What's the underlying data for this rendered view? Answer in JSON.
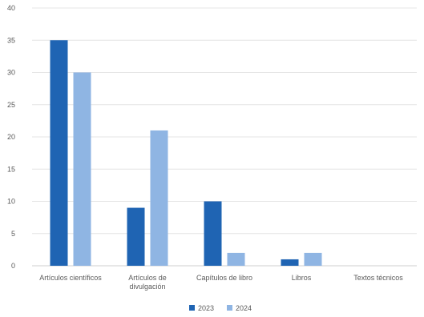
{
  "chart_data": {
    "type": "bar",
    "title": "",
    "xlabel": "",
    "ylabel": "",
    "ylim": [
      0,
      40
    ],
    "yticks": [
      0,
      5,
      10,
      15,
      20,
      25,
      30,
      35,
      40
    ],
    "grid": true,
    "legend_position": "bottom",
    "categories": [
      [
        "Artículos científicos"
      ],
      [
        "Artículos de",
        "divulgación"
      ],
      [
        "Capítulos de libro"
      ],
      [
        "Libros"
      ],
      [
        "Textos técnicos"
      ]
    ],
    "series": [
      {
        "name": "2023",
        "color": "#1f64b3",
        "values": [
          35,
          9,
          10,
          1,
          0
        ]
      },
      {
        "name": "2024",
        "color": "#8fb5e3",
        "values": [
          30,
          21,
          2,
          2,
          0
        ]
      }
    ]
  }
}
